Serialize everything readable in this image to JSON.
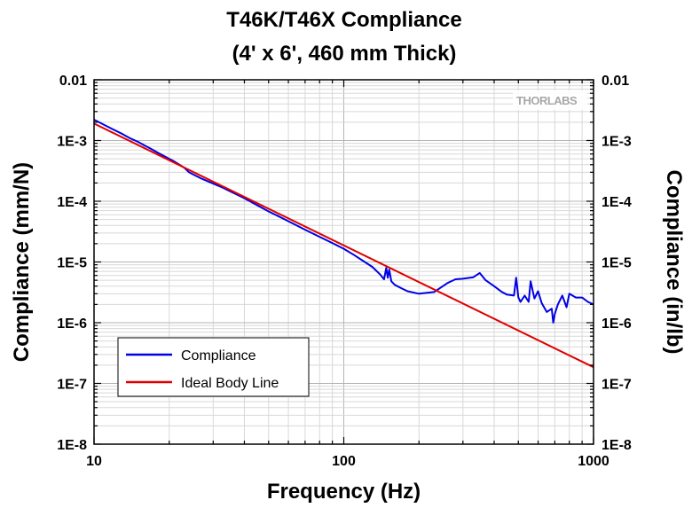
{
  "chart_data": {
    "type": "line",
    "title_line1": "T46K/T46X Compliance",
    "title_line2": "(4' x 6', 460 mm Thick)",
    "xlabel": "Frequency (Hz)",
    "ylabel_left": "Compliance (mm/N)",
    "ylabel_right": "Compliance (in/lb)",
    "x_scale": "log",
    "y_scale": "log",
    "xlim": [
      10,
      1000
    ],
    "ylim": [
      1e-08,
      0.01
    ],
    "x_ticks": [
      10,
      100,
      1000
    ],
    "x_tick_labels": [
      "10",
      "100",
      "1000"
    ],
    "y_ticks": [
      0.01,
      0.001,
      0.0001,
      1e-05,
      1e-06,
      1e-07,
      1e-08
    ],
    "y_tick_labels_left": [
      "0.01",
      "1E-3",
      "1E-4",
      "1E-5",
      "1E-6",
      "1E-7",
      "1E-8"
    ],
    "y_tick_labels_right": [
      "0.01",
      "1E-3",
      "1E-4",
      "1E-5",
      "1E-6",
      "1E-7",
      "1E-8"
    ],
    "grid": true,
    "minor_grid": true,
    "legend_position": "bottom-left",
    "watermark": "THORLABS",
    "series": [
      {
        "name": "Compliance",
        "color": "#0000e6",
        "x": [
          10,
          11,
          12,
          13,
          14,
          15,
          16,
          17,
          18,
          19,
          20,
          21,
          22,
          23,
          24,
          25,
          27,
          30,
          33,
          36,
          40,
          45,
          50,
          55,
          60,
          70,
          80,
          90,
          100,
          110,
          120,
          130,
          140,
          145,
          148,
          150,
          152,
          155,
          160,
          170,
          180,
          200,
          230,
          260,
          280,
          300,
          330,
          350,
          370,
          400,
          430,
          450,
          480,
          490,
          500,
          510,
          530,
          550,
          560,
          580,
          600,
          620,
          650,
          680,
          690,
          700,
          720,
          750,
          780,
          800,
          850,
          900,
          950,
          1000
        ],
        "y": [
          0.0022,
          0.0018,
          0.0015,
          0.00128,
          0.00108,
          0.00095,
          0.00082,
          0.00072,
          0.00063,
          0.00056,
          0.0005,
          0.00045,
          0.0004,
          0.000355,
          0.0003,
          0.000275,
          0.000235,
          0.000195,
          0.000165,
          0.000138,
          0.000112,
          8.6e-05,
          6.8e-05,
          5.6e-05,
          4.7e-05,
          3.4e-05,
          2.6e-05,
          2.05e-05,
          1.65e-05,
          1.3e-05,
          1.03e-05,
          8.3e-06,
          6.2e-06,
          5.2e-06,
          8e-06,
          5.5e-06,
          7.5e-06,
          4.8e-06,
          4.2e-06,
          3.7e-06,
          3.3e-06,
          3e-06,
          3.2e-06,
          4.5e-06,
          5.2e-06,
          5.3e-06,
          5.6e-06,
          6.6e-06,
          5e-06,
          4e-06,
          3.2e-06,
          2.9e-06,
          2.8e-06,
          5.5e-06,
          2.6e-06,
          2.2e-06,
          2.8e-06,
          2.2e-06,
          4.8e-06,
          2.5e-06,
          3.3e-06,
          2.1e-06,
          1.5e-06,
          1.7e-06,
          1e-06,
          1.4e-06,
          2e-06,
          2.8e-06,
          1.8e-06,
          3e-06,
          2.6e-06,
          2.6e-06,
          2.2e-06,
          2e-06
        ]
      },
      {
        "name": "Ideal Body Line",
        "color": "#e00000",
        "x": [
          10,
          1000
        ],
        "y": [
          0.0019,
          1.85e-07
        ]
      }
    ]
  }
}
